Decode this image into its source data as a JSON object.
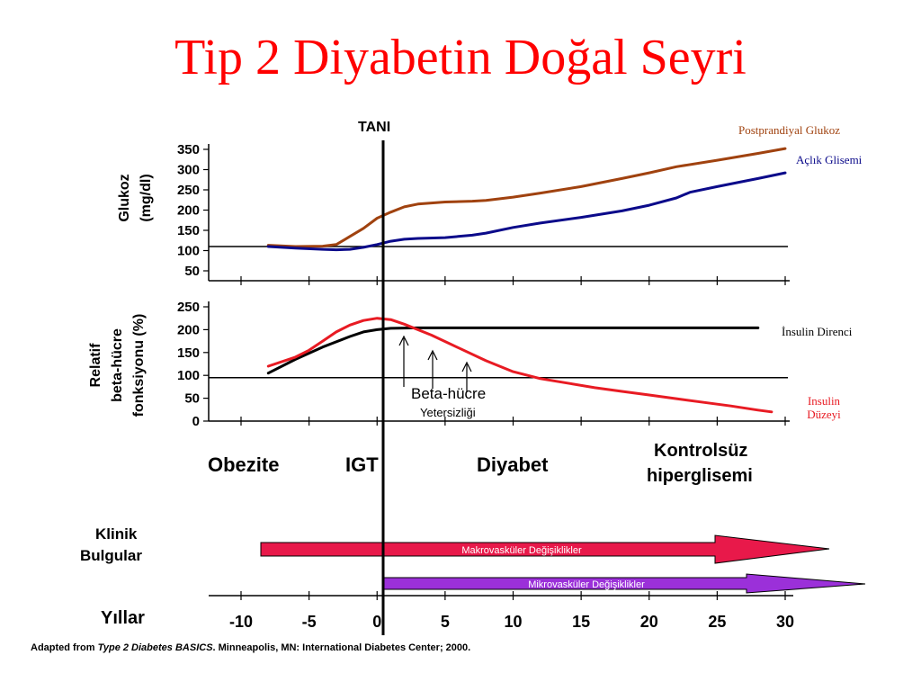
{
  "title": "Tip 2 Diyabetin Doğal Seyri",
  "diagnosis_label": "TANI",
  "stages": [
    "Obezite",
    "IGT",
    "Diyabet",
    "Kontrolsüz",
    "hiperglisemi"
  ],
  "clinical": {
    "label_line1": "Klinik",
    "label_line2": "Bulgular",
    "macro_label": "Makrovasküler Değişiklikler",
    "micro_label": "Mikrovasküler Değişiklikler",
    "macro_color": "#e8194a",
    "micro_color": "#9b30d9"
  },
  "years_label": "Yıllar",
  "footer": {
    "prefix": "Adapted from ",
    "source_title": "Type 2 Diabetes BASICS",
    "suffix": ". Minneapolis, MN: International Diabetes Center; 2000."
  },
  "beta_annotation": {
    "line1": "Beta-hücre",
    "line2": "Yetersizliği"
  },
  "colors": {
    "title": "#ff0000",
    "postprandial": "#a0420f",
    "fasting": "#0b0a8a",
    "insulin_resistance": "#000000",
    "insulin_level": "#e81b23"
  },
  "chart_data": [
    {
      "type": "line",
      "ylabel": "Glukoz (mg/dl)",
      "ylabel_lines": [
        "Glukoz",
        "(mg/dl)"
      ],
      "xlim": [
        -10,
        30
      ],
      "ylim": [
        50,
        350
      ],
      "yticks": [
        50,
        100,
        150,
        200,
        250,
        300,
        350
      ],
      "xticks": [
        -10,
        -5,
        0,
        5,
        10,
        15,
        20,
        25,
        30
      ],
      "reference_y": 110,
      "series": [
        {
          "name": "Postprandiyal Glukoz",
          "color": "#a0420f",
          "x": [
            -8,
            -6,
            -4,
            -3,
            -2,
            -1,
            0,
            1,
            2,
            3,
            5,
            7,
            8,
            10,
            12,
            15,
            18,
            20,
            22,
            25,
            28,
            30
          ],
          "y": [
            113,
            110,
            111,
            115,
            135,
            155,
            180,
            195,
            208,
            215,
            220,
            222,
            224,
            232,
            242,
            258,
            278,
            292,
            307,
            323,
            340,
            352
          ]
        },
        {
          "name": "Açlık Glisemi",
          "color": "#0b0a8a",
          "x": [
            -8,
            -6,
            -4,
            -3,
            -2,
            -1,
            0,
            1,
            2,
            3,
            5,
            7,
            8,
            10,
            12,
            15,
            18,
            20,
            22,
            23,
            25,
            28,
            30
          ],
          "y": [
            110,
            106,
            103,
            102,
            103,
            108,
            115,
            123,
            128,
            130,
            132,
            138,
            143,
            157,
            168,
            182,
            198,
            212,
            230,
            244,
            258,
            278,
            292
          ]
        }
      ]
    },
    {
      "type": "line",
      "ylabel": "Relatif beta-hücre fonksiyonu (%)",
      "ylabel_lines": [
        "Relatif",
        "beta-hücre",
        "fonksiyonu (%)"
      ],
      "xlim": [
        -10,
        30
      ],
      "ylim": [
        0,
        250
      ],
      "yticks": [
        0,
        50,
        100,
        150,
        200,
        250
      ],
      "xticks": [
        -10,
        -5,
        0,
        5,
        10,
        15,
        20,
        25,
        30
      ],
      "reference_y": 95,
      "series": [
        {
          "name": "İnsulin Direnci",
          "color": "#000000",
          "x": [
            -8,
            -6,
            -4,
            -2,
            -1,
            0,
            1,
            3,
            5,
            10,
            15,
            20,
            25,
            28
          ],
          "y": [
            105,
            135,
            162,
            185,
            195,
            200,
            203,
            204,
            204,
            204,
            204,
            204,
            204,
            204
          ]
        },
        {
          "name": "Insulin Düzeyi",
          "color": "#e81b23",
          "x": [
            -8,
            -6,
            -5,
            -4,
            -3,
            -2,
            -1,
            0,
            1,
            2,
            4,
            6,
            8,
            10,
            12,
            14,
            16,
            18,
            20,
            22,
            24,
            26,
            28,
            29
          ],
          "y": [
            120,
            140,
            155,
            175,
            195,
            210,
            220,
            225,
            222,
            212,
            188,
            160,
            132,
            108,
            93,
            83,
            73,
            65,
            57,
            49,
            41,
            33,
            24,
            20
          ]
        }
      ]
    }
  ]
}
